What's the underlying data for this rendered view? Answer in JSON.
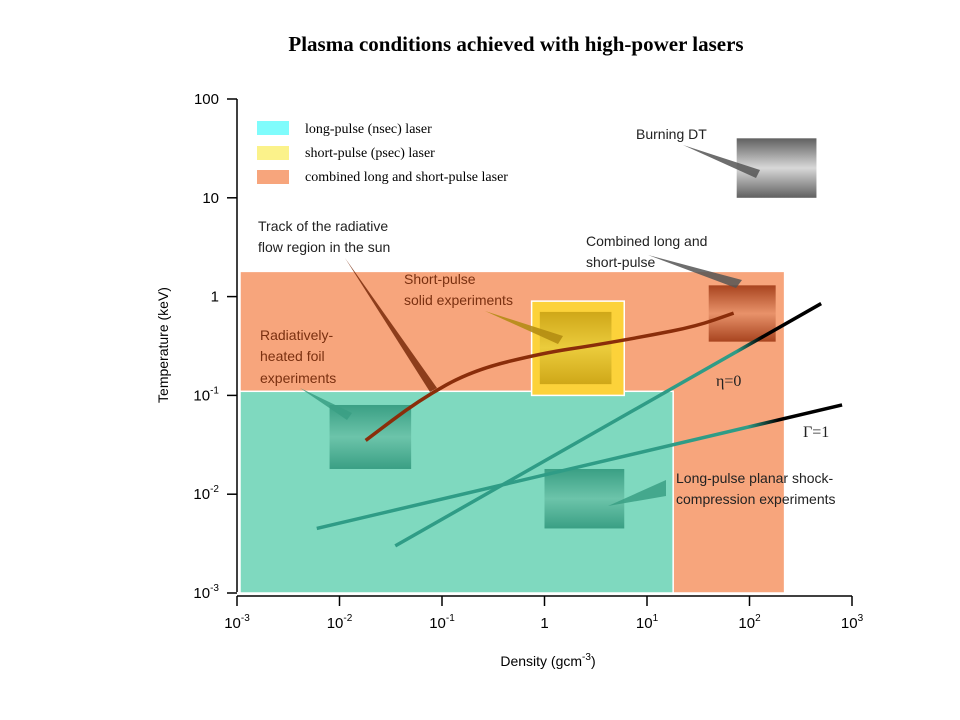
{
  "title": "Plasma conditions achieved with high-power lasers",
  "chart_data": {
    "type": "area",
    "title": "Plasma conditions achieved with high-power lasers",
    "xlabel": "Density (gcm",
    "xlabel_sup": "-3",
    "xlabel_close": ")",
    "ylabel": "Temperature (keV)",
    "xscale": "log",
    "yscale": "log",
    "xlim": [
      0.001,
      1000
    ],
    "ylim": [
      0.001,
      100
    ],
    "x_ticks": [
      {
        "value": 0.001,
        "base": "10",
        "sup": "-3"
      },
      {
        "value": 0.01,
        "base": "10",
        "sup": "-2"
      },
      {
        "value": 0.1,
        "base": "10",
        "sup": "-1"
      },
      {
        "value": 1,
        "base": "1",
        "sup": ""
      },
      {
        "value": 10,
        "base": "10",
        "sup": "1"
      },
      {
        "value": 100,
        "base": "10",
        "sup": "2"
      },
      {
        "value": 1000,
        "base": "10",
        "sup": "3"
      }
    ],
    "y_ticks": [
      {
        "value": 0.001,
        "base": "10",
        "sup": "-3"
      },
      {
        "value": 0.01,
        "base": "10",
        "sup": "-2"
      },
      {
        "value": 0.1,
        "base": "10",
        "sup": "-1"
      },
      {
        "value": 1,
        "base": "1",
        "sup": ""
      },
      {
        "value": 10,
        "base": "10",
        "sup": ""
      },
      {
        "value": 100,
        "base": "100",
        "sup": ""
      }
    ],
    "legend_position": "top-left",
    "legend": [
      {
        "label": "long-pulse (nsec) laser",
        "color": "#7ffcfc"
      },
      {
        "label": "short-pulse (psec) laser",
        "color": "#fbf28a"
      },
      {
        "label": "combined long and short-pulse laser",
        "color": "#f7a57c"
      }
    ],
    "regions": [
      {
        "label": "combined long and short-pulse laser",
        "x": [
          0.001,
          220
        ],
        "y": [
          0.001,
          1.8
        ],
        "color": "#f7a57c"
      },
      {
        "label": "long-pulse (nsec) laser",
        "x": [
          0.001,
          18
        ],
        "y": [
          0.001,
          0.11
        ],
        "color": "#7fd9bf"
      },
      {
        "label": "short-pulse (psec) laser",
        "x": [
          0.7,
          6
        ],
        "y": [
          0.1,
          0.9
        ],
        "color": "#fcd23a"
      }
    ],
    "lines": [
      {
        "label": "Track of the radiative flow region in the sun",
        "color": "#8a2d0a",
        "points": [
          [
            0.018,
            0.035
          ],
          [
            0.06,
            0.09
          ],
          [
            0.2,
            0.18
          ],
          [
            1,
            0.27
          ],
          [
            3,
            0.32
          ],
          [
            10,
            0.4
          ],
          [
            30,
            0.5
          ],
          [
            70,
            0.68
          ]
        ]
      },
      {
        "label": "η=0",
        "color": "#2f9c86",
        "color_end": "#000000",
        "points": [
          [
            0.035,
            0.003
          ],
          [
            500,
            0.85
          ]
        ]
      },
      {
        "label": "Γ=1",
        "color": "#2f9c86",
        "color_end": "#000000",
        "points": [
          [
            0.006,
            0.0045
          ],
          [
            800,
            0.08
          ]
        ]
      }
    ],
    "markers": [
      {
        "label": "Burning DT",
        "x": [
          75,
          450
        ],
        "y": [
          10,
          40
        ],
        "color": "#808080"
      },
      {
        "label": "Combined long and short-pulse",
        "x": [
          40,
          180
        ],
        "y": [
          0.35,
          1.3
        ],
        "color": "#b5532e"
      },
      {
        "label": "Short-pulse solid experiments",
        "x": [
          0.9,
          4.5
        ],
        "y": [
          0.13,
          0.7
        ],
        "color": "#d4b21e"
      },
      {
        "label": "Radiatively-heated foil experiments",
        "x": [
          0.008,
          0.05
        ],
        "y": [
          0.018,
          0.08
        ],
        "color": "#3ea58a"
      },
      {
        "label": "Long-pulse planar shock-compression experiments",
        "x": [
          1,
          6
        ],
        "y": [
          0.0045,
          0.018
        ],
        "color": "#3ea58a"
      }
    ],
    "annotations": [
      {
        "text": [
          "Burning DT"
        ]
      },
      {
        "text": [
          "Track of the radiative",
          "flow region in the sun"
        ]
      },
      {
        "text": [
          "Combined long and",
          "short-pulse"
        ]
      },
      {
        "text": [
          "Short-pulse",
          "solid experiments"
        ]
      },
      {
        "text": [
          "Radiatively-",
          "heated foil",
          "experiments"
        ]
      },
      {
        "text": [
          "Long-pulse planar shock-",
          "compression experiments"
        ]
      },
      {
        "text": [
          "η=0"
        ]
      },
      {
        "text": [
          "Γ=1"
        ]
      }
    ]
  }
}
